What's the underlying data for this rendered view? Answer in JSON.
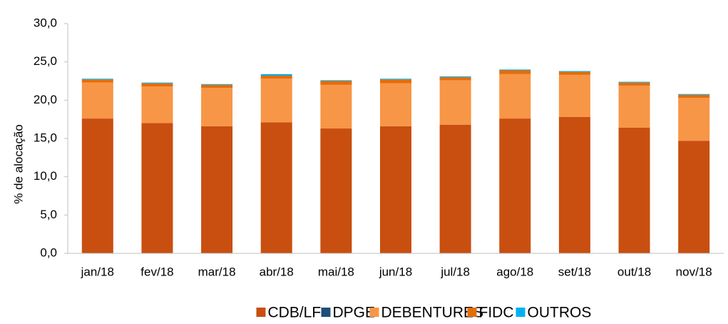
{
  "chart_data": {
    "type": "stacked-bar",
    "y_label": "% de alocação",
    "categories": [
      "jan/18",
      "fev/18",
      "mar/18",
      "abr/18",
      "mai/18",
      "jun/18",
      "jul/18",
      "ago/18",
      "set/18",
      "out/18",
      "nov/18"
    ],
    "series": [
      {
        "name": "CDB/LF",
        "color": "#c84f10",
        "values": [
          17.6,
          17.0,
          16.6,
          17.1,
          16.3,
          16.6,
          16.8,
          17.6,
          17.8,
          16.4,
          14.7
        ]
      },
      {
        "name": "DPGE",
        "color": "#1f4e79",
        "values": [
          0,
          0,
          0,
          0,
          0,
          0,
          0,
          0,
          0,
          0,
          0
        ]
      },
      {
        "name": "DEBENTURES",
        "color": "#f79646",
        "values": [
          4.7,
          4.8,
          5.0,
          5.7,
          5.7,
          5.6,
          5.8,
          5.8,
          5.5,
          5.5,
          5.6
        ]
      },
      {
        "name": "FIDC",
        "color": "#e46c0a",
        "values": [
          0.4,
          0.4,
          0.4,
          0.4,
          0.5,
          0.5,
          0.4,
          0.5,
          0.4,
          0.4,
          0.4
        ]
      },
      {
        "name": "OUTROS",
        "color": "#00b0f0",
        "values": [
          0.1,
          0.1,
          0.1,
          0.2,
          0.1,
          0.1,
          0.1,
          0.1,
          0.1,
          0.1,
          0.1
        ]
      }
    ],
    "ylim": [
      0,
      30
    ],
    "yticks": [
      {
        "value": 0,
        "label": "0,0"
      },
      {
        "value": 5,
        "label": "5,0"
      },
      {
        "value": 10,
        "label": "10,0"
      },
      {
        "value": 15,
        "label": "15,0"
      },
      {
        "value": 20,
        "label": "20,0"
      },
      {
        "value": 25,
        "label": "25,0"
      },
      {
        "value": 30,
        "label": "30,0"
      }
    ],
    "grid": false
  }
}
